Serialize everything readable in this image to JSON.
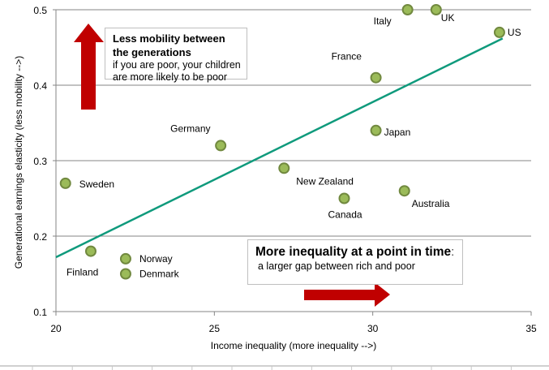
{
  "chart_data": {
    "type": "scatter",
    "title": "",
    "xlabel": "Income inequality (more inequality -->)",
    "ylabel": "Generational earnings elasticity (less mobility -->)",
    "xlim": [
      20,
      35
    ],
    "ylim": [
      0.1,
      0.5
    ],
    "x_ticks": [
      "20",
      "25",
      "30",
      "35"
    ],
    "y_ticks": [
      "0.1",
      "0.2",
      "0.3",
      "0.4",
      "0.5"
    ],
    "grid": "horizontal",
    "legend": "none",
    "points": [
      {
        "label": "Italy",
        "x": 31.1,
        "y": 0.5
      },
      {
        "label": "UK",
        "x": 32.0,
        "y": 0.5
      },
      {
        "label": "US",
        "x": 34.0,
        "y": 0.47
      },
      {
        "label": "France",
        "x": 30.1,
        "y": 0.41
      },
      {
        "label": "Japan",
        "x": 30.1,
        "y": 0.34
      },
      {
        "label": "Germany",
        "x": 25.2,
        "y": 0.32
      },
      {
        "label": "New Zealand",
        "x": 27.2,
        "y": 0.29
      },
      {
        "label": "Sweden",
        "x": 20.3,
        "y": 0.27
      },
      {
        "label": "Australia",
        "x": 31.0,
        "y": 0.26
      },
      {
        "label": "Canada",
        "x": 29.1,
        "y": 0.25
      },
      {
        "label": "Finland",
        "x": 21.1,
        "y": 0.18
      },
      {
        "label": "Norway",
        "x": 22.2,
        "y": 0.17
      },
      {
        "label": "Denmark",
        "x": 22.2,
        "y": 0.15
      }
    ],
    "trendline": {
      "x": [
        20.0,
        34.1
      ],
      "y": [
        0.172,
        0.462
      ]
    },
    "annotations": [
      {
        "title": "Less mobility between the generations",
        "text": "if you are poor, your children are more likely to be poor",
        "arrow": "up"
      },
      {
        "title": "More inequality at a point in time",
        "text": "a larger gap between rich and poor",
        "arrow": "right"
      }
    ]
  },
  "colors": {
    "marker_fill": "#9bbb59",
    "marker_edge": "#71893f",
    "trendline": "#0f9a7c",
    "arrow": "#c00000",
    "grid": "#868686",
    "text": "#000000"
  },
  "annotations": {
    "mobility_title_1": "Less mobility between",
    "mobility_title_2": "the generations",
    "mobility_text_1": "if you are poor, your children",
    "mobility_text_2": "are more likely to be poor",
    "inequality_title": "More inequality at a point in time",
    "inequality_colon": ":",
    "inequality_text": "a larger gap between rich and poor"
  }
}
